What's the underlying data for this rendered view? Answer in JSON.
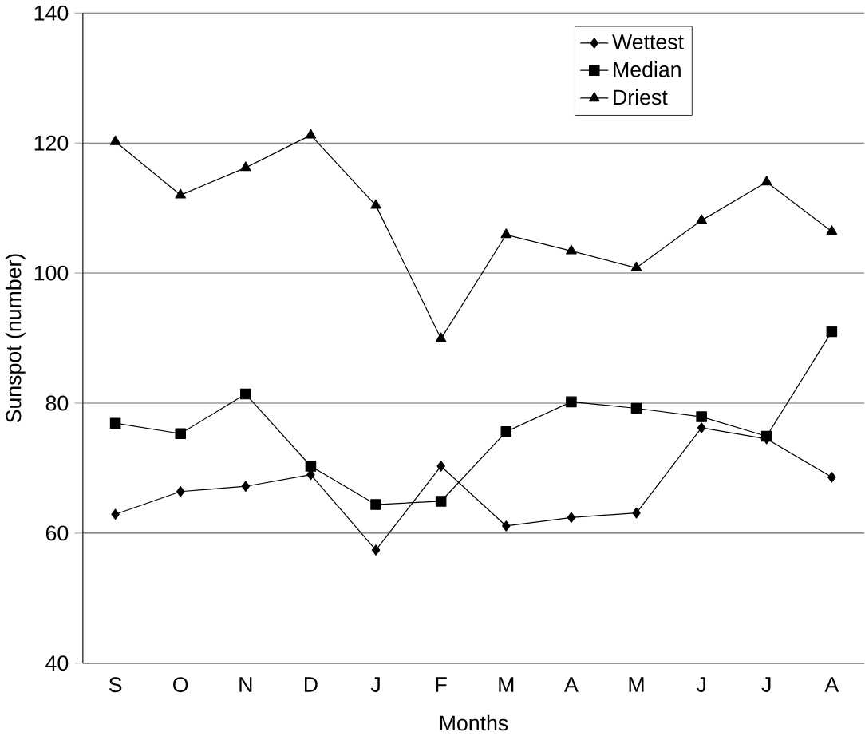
{
  "chart_data": {
    "type": "line",
    "xlabel": "Months",
    "ylabel": "Sunspot  (number)",
    "categories": [
      "S",
      "O",
      "N",
      "D",
      "J",
      "F",
      "M",
      "A",
      "M",
      "J",
      "J",
      "A"
    ],
    "series": [
      {
        "name": "Wettest",
        "color": "#000000",
        "marker": "diamond",
        "values": [
          62.9,
          66.4,
          67.2,
          69.0,
          57.4,
          70.3,
          61.1,
          62.4,
          63.1,
          76.2,
          74.5,
          68.6
        ]
      },
      {
        "name": "Median",
        "color": "#000000",
        "marker": "square",
        "values": [
          76.9,
          75.3,
          81.4,
          70.3,
          64.4,
          64.9,
          75.6,
          80.2,
          79.2,
          77.9,
          74.9,
          91.0
        ]
      },
      {
        "name": "Driest",
        "color": "#000000",
        "marker": "triangle",
        "values": [
          120.2,
          112.0,
          116.2,
          121.2,
          110.4,
          89.9,
          105.9,
          103.4,
          100.8,
          108.1,
          114.0,
          106.4
        ]
      }
    ],
    "ylim": [
      40,
      140
    ],
    "yticks": [
      40,
      60,
      80,
      100,
      120,
      140
    ],
    "grid": "y",
    "legend": "top right",
    "line_style": "solid"
  }
}
